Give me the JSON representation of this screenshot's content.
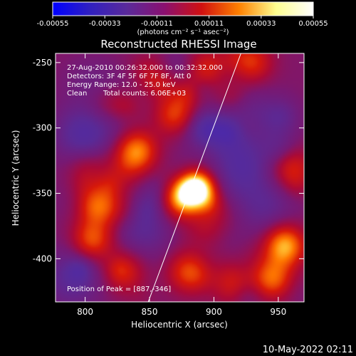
{
  "colorbar": {
    "ticks": [
      "-0.00055",
      "-0.00033",
      "-0.00011",
      "0.00011",
      "0.00033",
      "0.00055"
    ],
    "tick_values": [
      -0.00055,
      -0.00033,
      -0.00011,
      0.00011,
      0.00033,
      0.00055
    ],
    "unit_label": "(photons cm⁻² s⁻¹ asec⁻²)",
    "colors": [
      "#0000ff",
      "#3020c0",
      "#5a2a9a",
      "#8a1070",
      "#d01010",
      "#ff8000",
      "#ffff90",
      "#ffffff"
    ]
  },
  "annotations": {
    "time_range": "27-Aug-2010 00:26:32.000 to 00:32:32.000",
    "detectors": "Detectors: 3F 4F 5F 6F 7F 8F, Att 0",
    "energy": "Energy Range: 12.0 - 25.0 keV",
    "clean_label": "Clean",
    "total_counts": "Total counts: 6.06E+03",
    "peak_position": "Position of Peak = [887,-346]"
  },
  "footer": {
    "timestamp": "10-May-2022 02:11"
  },
  "chart_data": {
    "type": "heatmap",
    "title": "Reconstructed RHESSI Image",
    "xlabel": "Heliocentric X (arcsec)",
    "ylabel": "Heliocentric Y (arcsec)",
    "xlim": [
      777,
      970
    ],
    "ylim": [
      -433,
      -243
    ],
    "x_ticks": [
      800,
      850,
      900,
      950
    ],
    "y_ticks": [
      -250,
      -300,
      -350,
      -400
    ],
    "value_range": [
      -0.00055,
      0.00055
    ],
    "peak": [
      887,
      -346
    ],
    "limb_line": [
      [
        849,
        -433
      ],
      [
        921,
        -243
      ]
    ],
    "sources": [
      {
        "x": 887,
        "y": -346,
        "value": 0.00055
      },
      {
        "x": 876,
        "y": -352,
        "value": 0.00045
      },
      {
        "x": 840,
        "y": -318,
        "value": 0.00035
      },
      {
        "x": 810,
        "y": -360,
        "value": 0.0003
      },
      {
        "x": 805,
        "y": -385,
        "value": 0.00028
      },
      {
        "x": 955,
        "y": -390,
        "value": 0.0004
      },
      {
        "x": 945,
        "y": -415,
        "value": 0.0003
      },
      {
        "x": 880,
        "y": -410,
        "value": 0.00025
      },
      {
        "x": 870,
        "y": -290,
        "value": 0.00025
      },
      {
        "x": 895,
        "y": -255,
        "value": 0.0002
      },
      {
        "x": 930,
        "y": -250,
        "value": 0.00022
      },
      {
        "x": 960,
        "y": -330,
        "value": 0.00022
      },
      {
        "x": 830,
        "y": -410,
        "value": 0.0002
      },
      {
        "x": 915,
        "y": -420,
        "value": 0.00018
      },
      {
        "x": 850,
        "y": -260,
        "value": 0.00015
      }
    ],
    "weak_regions": [
      {
        "x": 800,
        "y": -305,
        "value": -0.0002
      },
      {
        "x": 920,
        "y": -330,
        "value": -0.00018
      },
      {
        "x": 845,
        "y": -375,
        "value": -0.00015
      },
      {
        "x": 925,
        "y": -290,
        "value": -0.00012
      },
      {
        "x": 790,
        "y": -415,
        "value": -0.00015
      },
      {
        "x": 940,
        "y": -360,
        "value": -0.00012
      }
    ]
  }
}
